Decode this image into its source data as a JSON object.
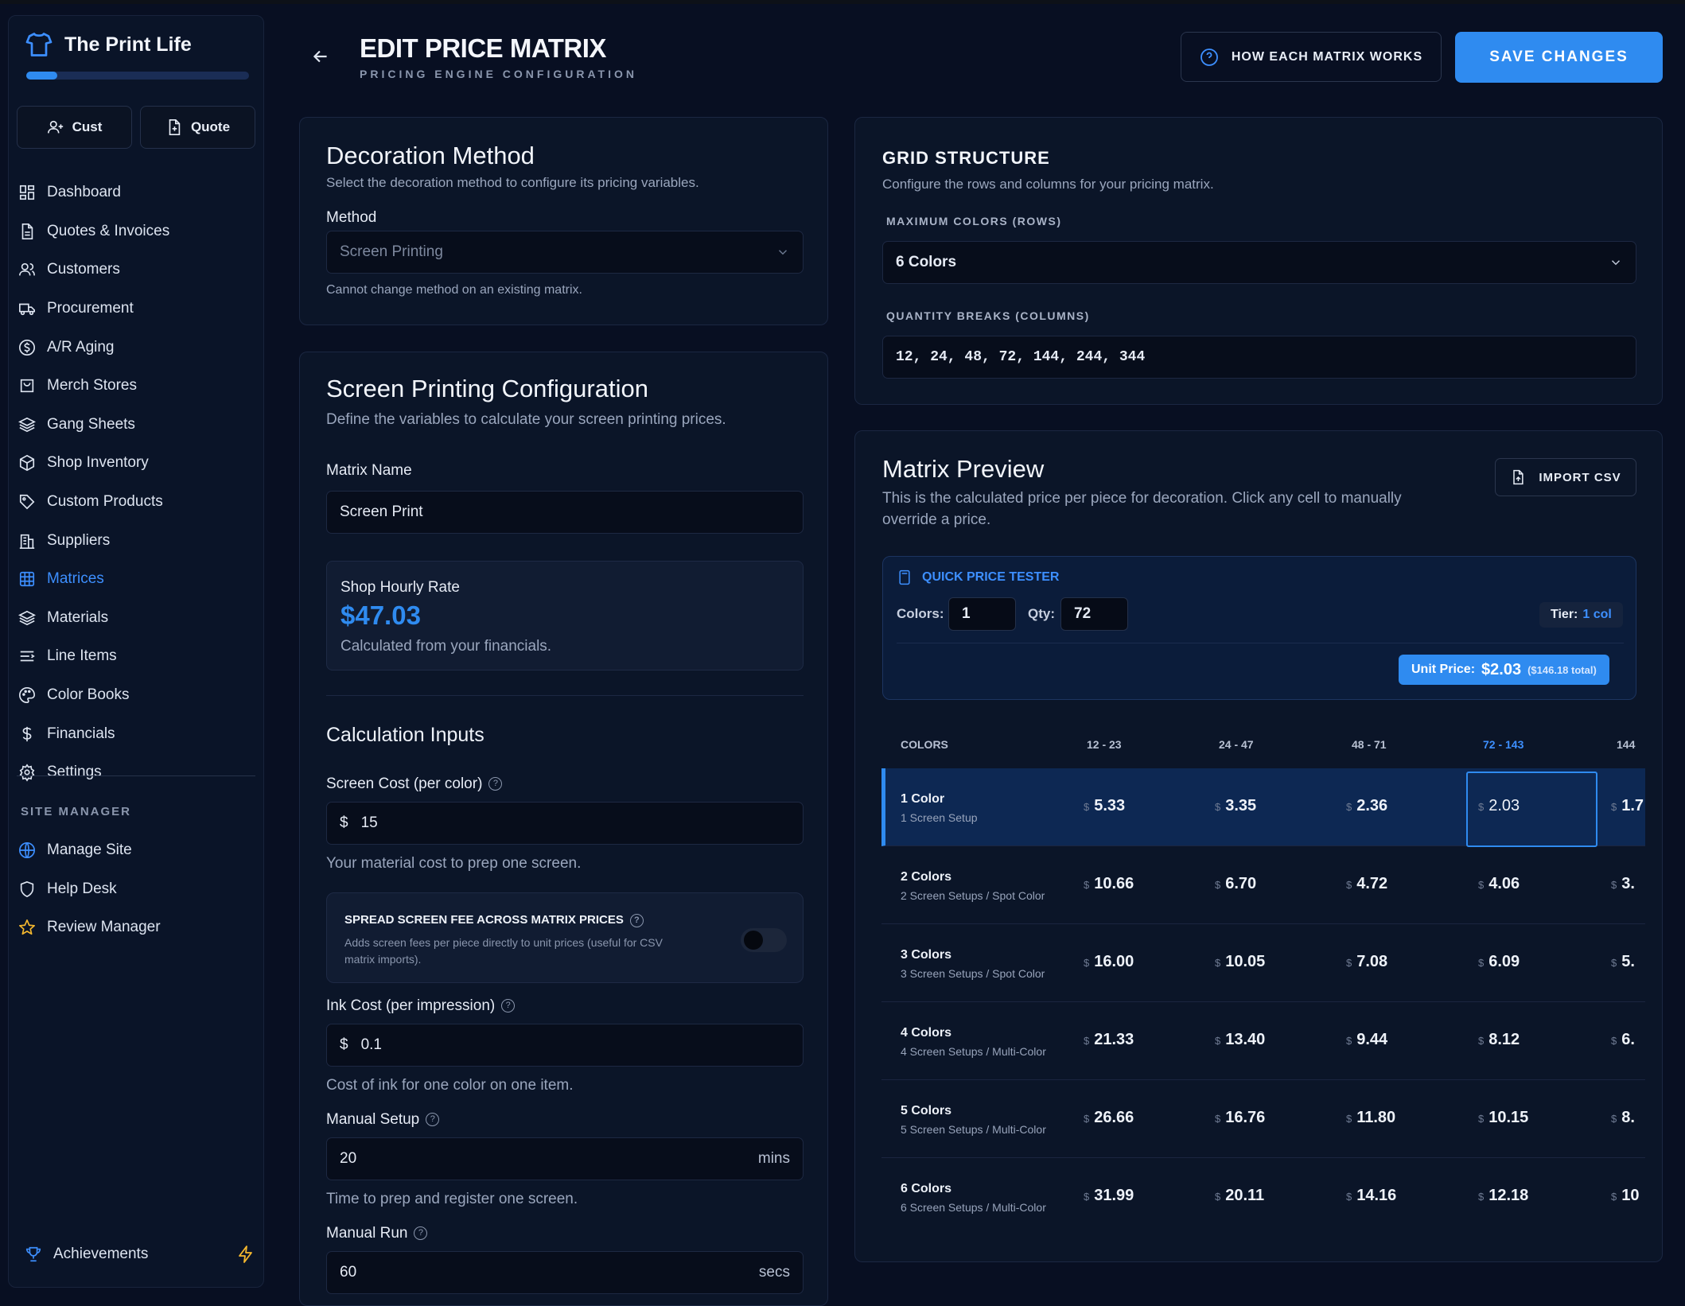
{
  "app": {
    "name": "The Print Life",
    "progress": 0.14
  },
  "quick_buttons": [
    {
      "label": "Cust",
      "icon": "user-plus-icon"
    },
    {
      "label": "Quote",
      "icon": "file-plus-icon"
    }
  ],
  "nav": [
    {
      "label": "Dashboard",
      "icon": "grid-icon"
    },
    {
      "label": "Quotes & Invoices",
      "icon": "document-icon"
    },
    {
      "label": "Customers",
      "icon": "users-icon"
    },
    {
      "label": "Procurement",
      "icon": "truck-icon"
    },
    {
      "label": "A/R Aging",
      "icon": "dollar-circle-icon"
    },
    {
      "label": "Merch Stores",
      "icon": "shopping-bag-icon"
    },
    {
      "label": "Gang Sheets",
      "icon": "layers-icon"
    },
    {
      "label": "Shop Inventory",
      "icon": "box-icon"
    },
    {
      "label": "Custom Products",
      "icon": "tag-icon"
    },
    {
      "label": "Suppliers",
      "icon": "building-icon"
    },
    {
      "label": "Matrices",
      "icon": "table-icon",
      "active": true
    },
    {
      "label": "Materials",
      "icon": "layers-icon"
    },
    {
      "label": "Line Items",
      "icon": "list-icon"
    },
    {
      "label": "Color Books",
      "icon": "palette-icon"
    },
    {
      "label": "Financials",
      "icon": "dollar-icon"
    },
    {
      "label": "Settings",
      "icon": "gear-icon"
    }
  ],
  "site_manager": {
    "label": "SITE MANAGER",
    "items": [
      {
        "label": "Manage Site",
        "icon": "globe-icon"
      },
      {
        "label": "Help Desk",
        "icon": "shield-icon"
      },
      {
        "label": "Review Manager",
        "icon": "star-icon"
      }
    ]
  },
  "achievements": {
    "label": "Achievements"
  },
  "header": {
    "title": "EDIT PRICE MATRIX",
    "subtitle": "PRICING ENGINE CONFIGURATION",
    "how_button": "HOW EACH MATRIX WORKS",
    "save_button": "SAVE CHANGES"
  },
  "decoration": {
    "title": "Decoration Method",
    "desc": "Select the decoration method to configure its pricing variables.",
    "method_label": "Method",
    "method_value": "Screen Printing",
    "note": "Cannot change method on an existing matrix."
  },
  "config": {
    "title": "Screen Printing Configuration",
    "desc": "Define the variables to calculate your screen printing prices.",
    "matrix_name_label": "Matrix Name",
    "matrix_name_value": "Screen Print",
    "hourly_label": "Shop Hourly Rate",
    "hourly_value": "$47.03",
    "hourly_note": "Calculated from your financials.",
    "calc_title": "Calculation Inputs",
    "screen_cost_label": "Screen Cost (per color)",
    "screen_cost_prefix": "$",
    "screen_cost_value": "15",
    "screen_cost_hint": "Your material cost to prep one screen.",
    "spread_title": "SPREAD SCREEN FEE ACROSS MATRIX PRICES",
    "spread_desc_1": "Adds screen fees per piece directly to unit prices (useful for CSV",
    "spread_desc_2": "matrix imports).",
    "spread_enabled": false,
    "ink_label": "Ink Cost (per impression)",
    "ink_prefix": "$",
    "ink_value": "0.1",
    "ink_hint": "Cost of ink for one color on one item.",
    "setup_label": "Manual Setup",
    "setup_value": "20",
    "setup_unit": "mins",
    "setup_hint": "Time to prep and register one screen.",
    "run_label": "Manual Run",
    "run_value": "60",
    "run_unit": "secs"
  },
  "grid": {
    "title": "GRID STRUCTURE",
    "desc": "Configure the rows and columns for your pricing matrix.",
    "rows_label": "MAXIMUM COLORS (ROWS)",
    "rows_value": "6 Colors",
    "cols_label": "QUANTITY BREAKS (COLUMNS)",
    "cols_value": "12, 24, 48, 72, 144, 244, 344"
  },
  "preview": {
    "title": "Matrix Preview",
    "desc_1": "This is the calculated price per piece for decoration. Click any cell to manually",
    "desc_2": "override a price.",
    "import_button": "IMPORT CSV",
    "tester": {
      "title": "QUICK PRICE TESTER",
      "colors_label": "Colors:",
      "colors_value": "1",
      "qty_label": "Qty:",
      "qty_value": "72",
      "tier_label": "Tier:",
      "tier_value": "1 col",
      "unit_label": "Unit Price:",
      "unit_value": "$2.03",
      "unit_total": "($146.18 total)"
    },
    "columns": [
      "COLORS",
      "12 - 23",
      "24 - 47",
      "48 - 71",
      "72 - 143",
      "144"
    ],
    "currency": "$",
    "rows": [
      {
        "name": "1 Color",
        "sub": "1 Screen Setup",
        "cells": [
          "5.33",
          "3.35",
          "2.36",
          "2.03",
          "1.7"
        ]
      },
      {
        "name": "2 Colors",
        "sub": "2 Screen Setups / Spot Color",
        "cells": [
          "10.66",
          "6.70",
          "4.72",
          "4.06",
          "3."
        ]
      },
      {
        "name": "3 Colors",
        "sub": "3 Screen Setups / Spot Color",
        "cells": [
          "16.00",
          "10.05",
          "7.08",
          "6.09",
          "5."
        ]
      },
      {
        "name": "4 Colors",
        "sub": "4 Screen Setups / Multi-Color",
        "cells": [
          "21.33",
          "13.40",
          "9.44",
          "8.12",
          "6."
        ]
      },
      {
        "name": "5 Colors",
        "sub": "5 Screen Setups / Multi-Color",
        "cells": [
          "26.66",
          "16.76",
          "11.80",
          "10.15",
          "8."
        ]
      },
      {
        "name": "6 Colors",
        "sub": "6 Screen Setups / Multi-Color",
        "cells": [
          "31.99",
          "20.11",
          "14.16",
          "12.18",
          "10"
        ]
      }
    ]
  },
  "colors": {
    "accent": "#2f8bf0",
    "background": "#080f22",
    "card": "#0b1528",
    "gold": "#f5b82e"
  }
}
